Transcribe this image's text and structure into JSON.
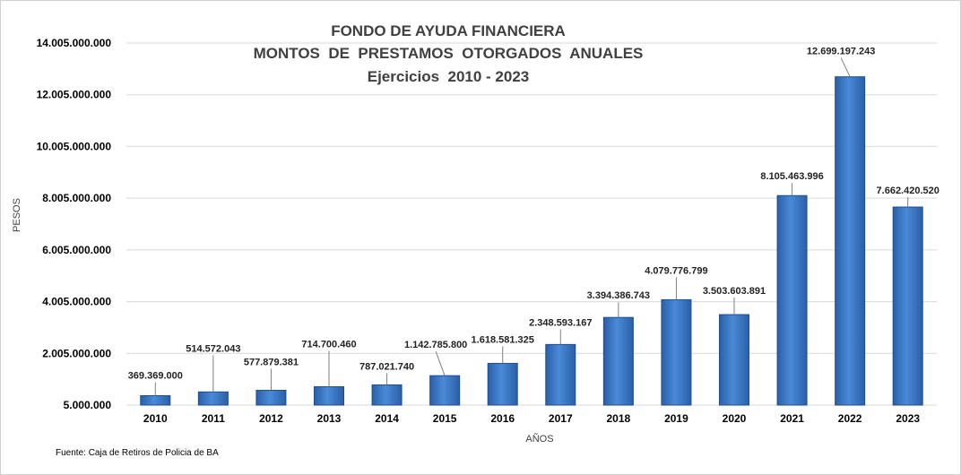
{
  "chart_data": {
    "type": "bar",
    "title": [
      "FONDO DE AYUDA FINANCIERA",
      "MONTOS  DE  PRESTAMOS  OTORGADOS  ANUALES",
      "Ejercicios  2010 - 2023"
    ],
    "xlabel": "AÑOS",
    "ylabel": "PESOS",
    "categories": [
      "2010",
      "2011",
      "2012",
      "2013",
      "2014",
      "2015",
      "2016",
      "2017",
      "2018",
      "2019",
      "2020",
      "2021",
      "2022",
      "2023"
    ],
    "values": [
      369369000,
      514572043,
      577879381,
      714700460,
      787021740,
      1142785800,
      1618581325,
      2348593167,
      3394386743,
      4079776799,
      3503603891,
      8105463996,
      12699197243,
      7662420520
    ],
    "value_labels": [
      "369.369.000",
      "514.572.043",
      "577.879.381",
      "714.700.460",
      "787.021.740",
      "1.142.785.800",
      "1.618.581.325",
      "2.348.593.167",
      "3.394.386.743",
      "4.079.776.799",
      "3.503.603.891",
      "8.105.463.996",
      "12.699.197.243",
      "7.662.420.520"
    ],
    "yticks": [
      5000000,
      2005000000,
      4005000000,
      6005000000,
      8005000000,
      10005000000,
      12005000000,
      14005000000
    ],
    "ytick_labels": [
      "5.000.000",
      "2.005.000.000",
      "4.005.000.000",
      "6.005.000.000",
      "8.005.000.000",
      "10.005.000.000",
      "12.005.000.000",
      "14.005.000.000"
    ],
    "ylim": [
      5000000,
      14005000000
    ],
    "grid": true,
    "legend": "none",
    "bar_color": "#3a77c6",
    "source": "Fuente: Caja de Retiros de Policia de BA"
  }
}
